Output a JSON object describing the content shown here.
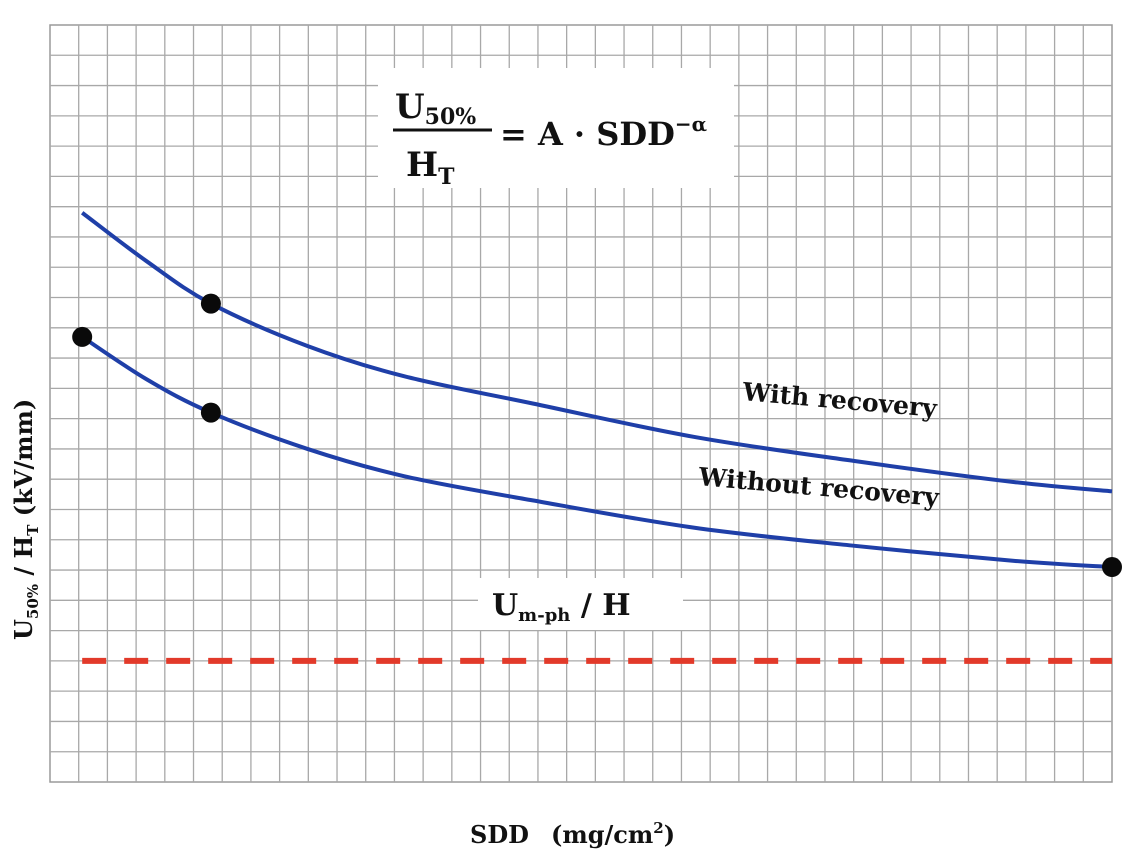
{
  "chart_data": {
    "type": "line",
    "xlabel": "SDD",
    "xlabel_unit": "(mg/cm",
    "xlabel_unit_sup": "2",
    "xlabel_unit_close": ")",
    "ylabel_main": "U",
    "ylabel_main_sub": "50%",
    "ylabel_sep": " / H",
    "ylabel_sep_sub": "T",
    "ylabel_unit": "  (kV/mm)",
    "grid": true,
    "xlim": [
      0,
      33
    ],
    "ylim": [
      0,
      25
    ],
    "formula": {
      "numerator": "U",
      "numerator_sub": "50%",
      "denominator": "H",
      "denominator_sub": "T",
      "rhs": "= A · SDD",
      "rhs_sup": "−α"
    },
    "series": [
      {
        "name": "With recovery",
        "color": "#1f3fa8",
        "x": [
          1,
          3,
          5,
          8,
          11,
          15,
          20,
          25,
          30,
          33
        ],
        "y": [
          18.8,
          17.2,
          15.8,
          14.4,
          13.4,
          12.5,
          11.4,
          10.6,
          9.9,
          9.6
        ],
        "markers_x": [
          5
        ],
        "markers_y": [
          15.8
        ]
      },
      {
        "name": "Without recovery",
        "color": "#1f3fa8",
        "x": [
          1,
          3,
          5,
          8,
          11,
          15,
          20,
          25,
          30,
          33
        ],
        "y": [
          14.7,
          13.3,
          12.2,
          11.0,
          10.1,
          9.3,
          8.4,
          7.8,
          7.3,
          7.1
        ],
        "markers_x": [
          1,
          5,
          33
        ],
        "markers_y": [
          14.7,
          12.2,
          7.1
        ]
      }
    ],
    "threshold": {
      "label_main": "U",
      "label_sub": "m-ph",
      "label_tail": " / H",
      "y": 4,
      "color": "#e23a2a",
      "style": "dashed"
    }
  }
}
